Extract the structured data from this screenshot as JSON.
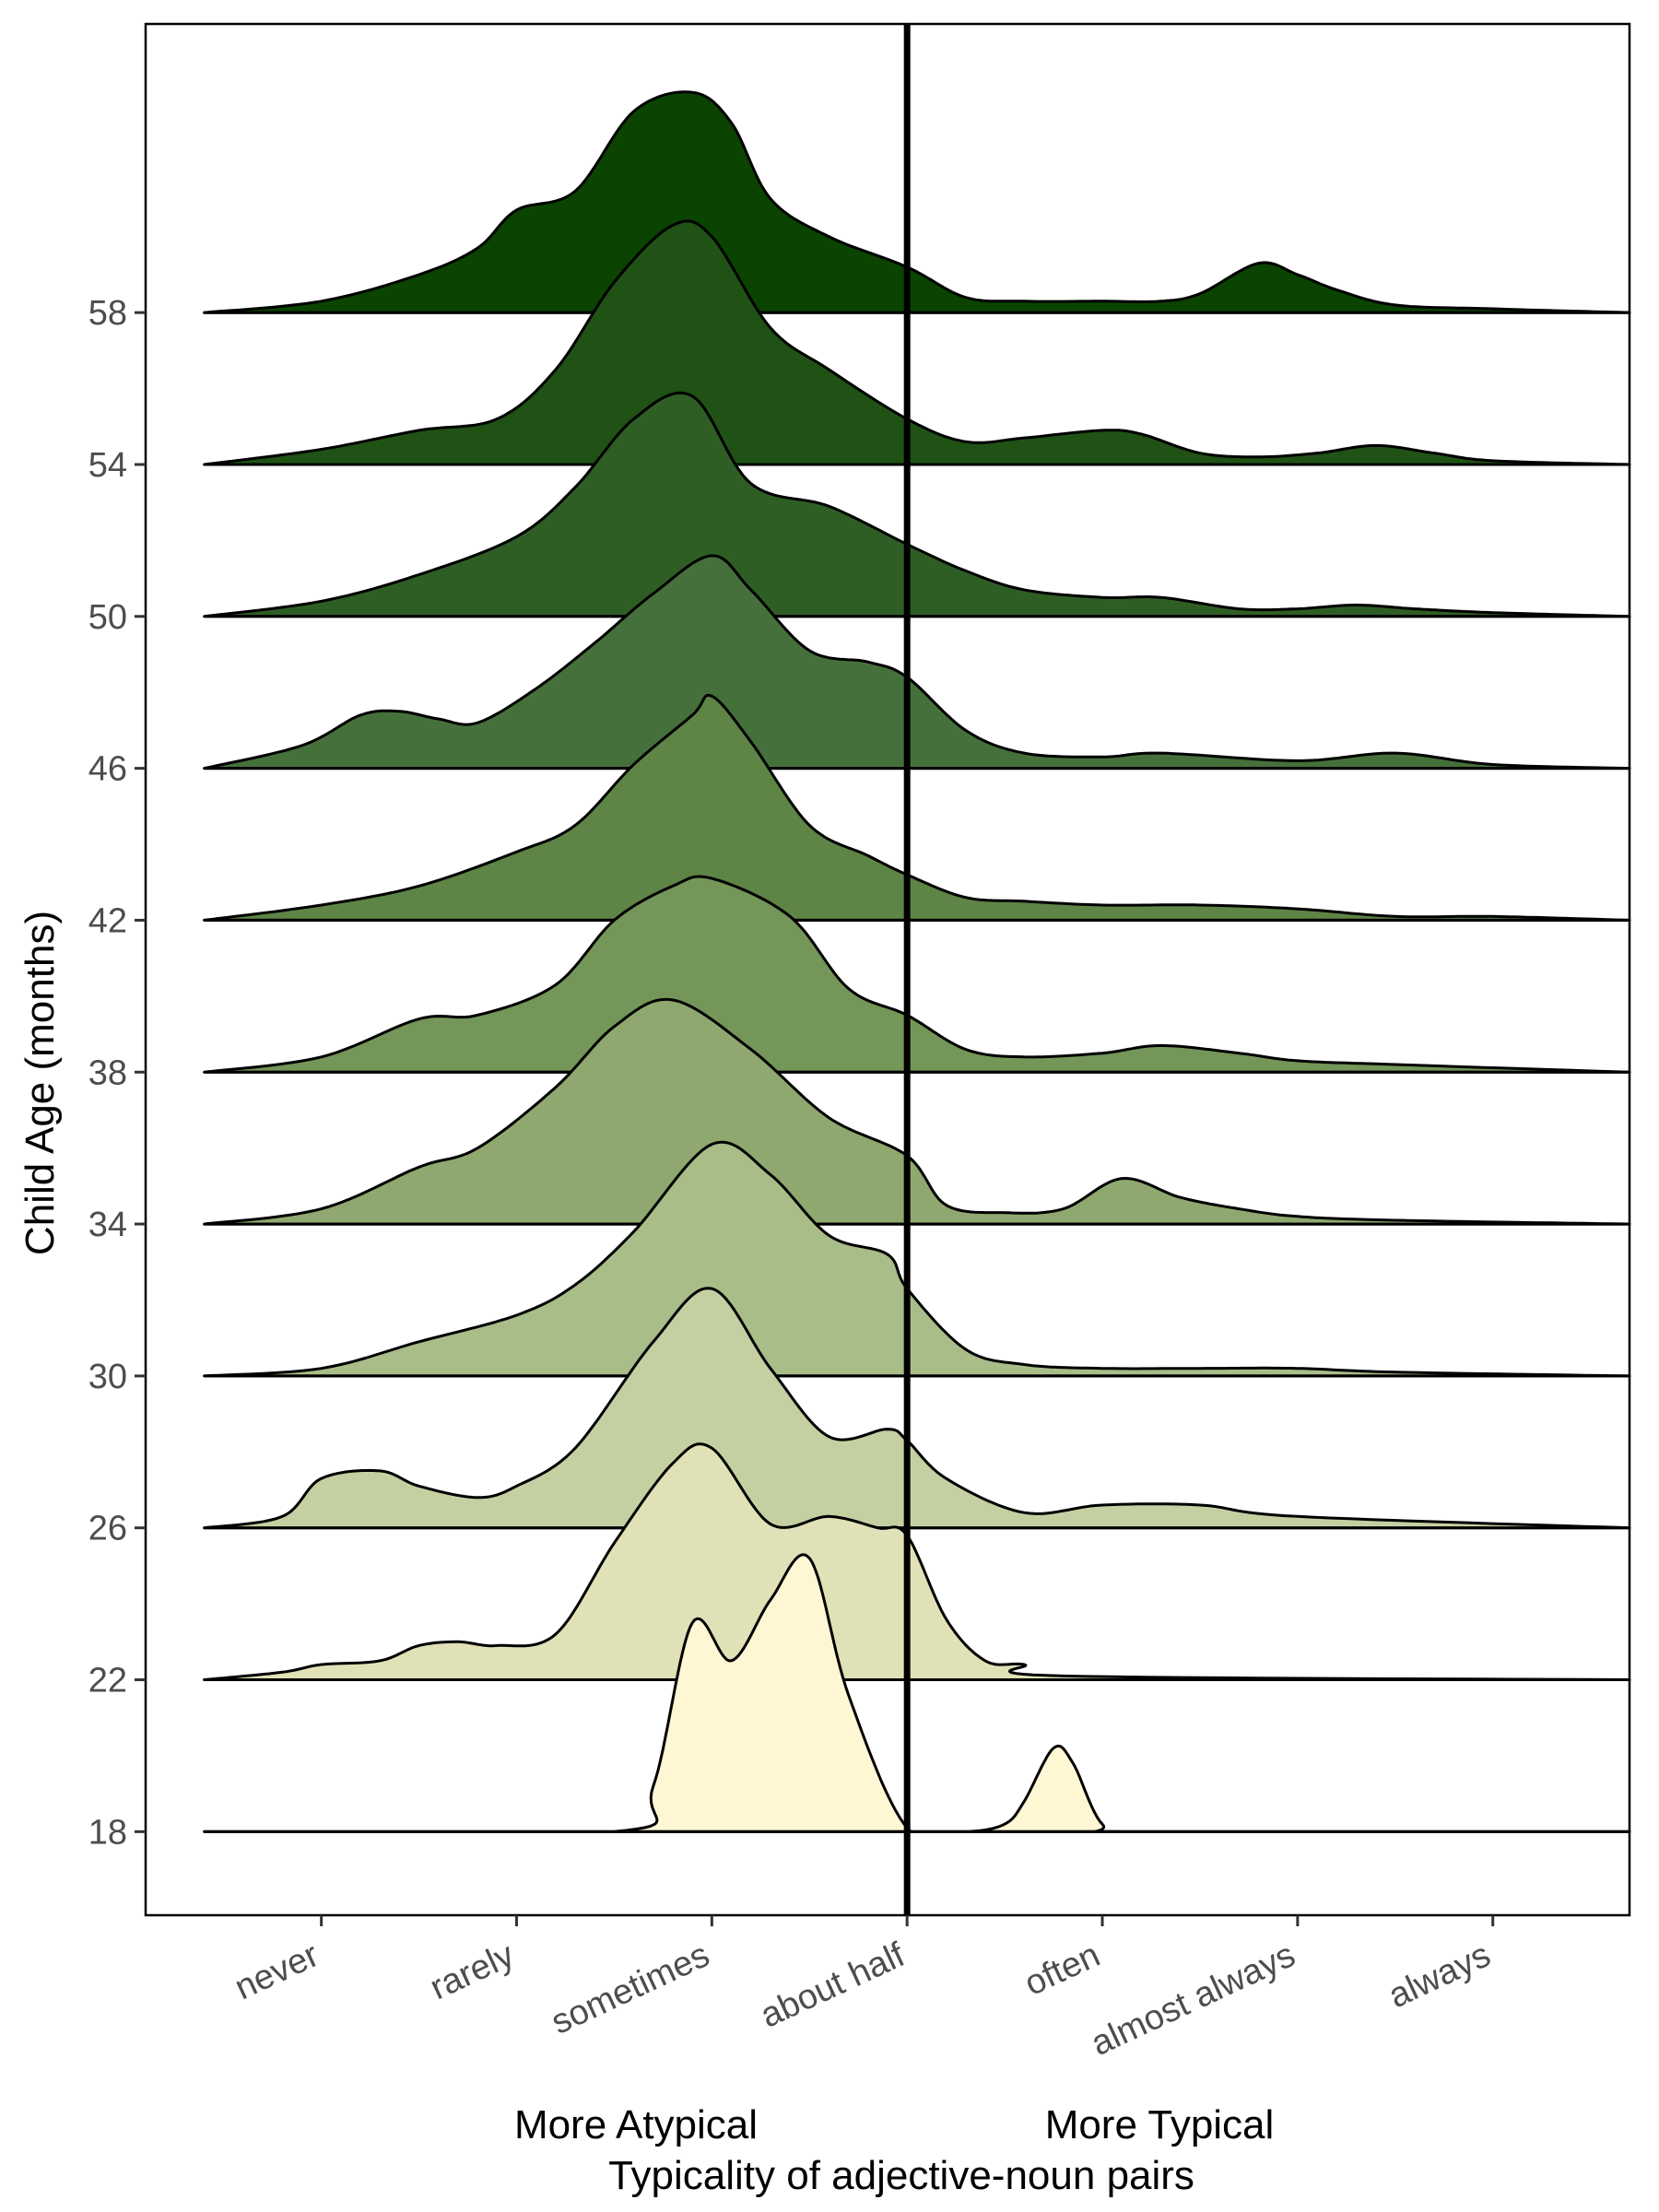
{
  "chart_data": {
    "type": "ridgeline",
    "xlabel": "Typicality of adjective-noun pairs",
    "ylabel": "Child Age (months)",
    "x_annotations": {
      "left": "More Atypical",
      "right": "More Typical"
    },
    "x_categories": [
      "never",
      "rarely",
      "sometimes",
      "about half",
      "often",
      "almost always",
      "always"
    ],
    "x_range": [
      0.1,
      7.7
    ],
    "y_ticks": [
      18,
      22,
      26,
      30,
      34,
      38,
      42,
      46,
      50,
      54,
      58
    ],
    "y_range": [
      15.8,
      65.6
    ],
    "vline_x": 4,
    "grid": false,
    "density_profiles": [
      {
        "age": 18,
        "fill": "#FFF7D4",
        "x": [
          0.4,
          2.5,
          2.7,
          2.9,
          3.1,
          3.3,
          3.5,
          3.7,
          4.0,
          4.3,
          4.5,
          4.6,
          4.75,
          4.85,
          5.0,
          5.2,
          7.7
        ],
        "y": [
          0,
          0,
          1.2,
          5.5,
          4.5,
          6.1,
          7.2,
          3.6,
          0.1,
          0,
          0.2,
          0.8,
          2.2,
          1.8,
          0.2,
          0,
          0
        ]
      },
      {
        "age": 22,
        "fill": "#E1E1B8",
        "x": [
          0.4,
          0.8,
          1.0,
          1.3,
          1.5,
          1.7,
          1.9,
          2.2,
          2.5,
          2.8,
          3.0,
          3.3,
          3.6,
          3.85,
          4.0,
          4.2,
          4.4,
          4.6,
          4.8,
          7.7
        ],
        "y": [
          0,
          0.2,
          0.4,
          0.5,
          0.9,
          1.0,
          0.9,
          1.2,
          3.6,
          5.7,
          6.1,
          4.1,
          4.3,
          4.0,
          3.8,
          1.6,
          0.5,
          0.4,
          0.1,
          0
        ]
      },
      {
        "age": 26,
        "fill": "#C4D0A2",
        "x": [
          0.4,
          0.8,
          1.0,
          1.3,
          1.5,
          1.8,
          2.0,
          2.3,
          2.7,
          3.0,
          3.3,
          3.6,
          3.9,
          4.0,
          4.2,
          4.6,
          5.0,
          5.5,
          6.0,
          7.7
        ],
        "y": [
          0,
          0.3,
          1.3,
          1.5,
          1.1,
          0.8,
          1.1,
          2.1,
          4.9,
          6.3,
          4.2,
          2.4,
          2.6,
          2.3,
          1.3,
          0.4,
          0.6,
          0.6,
          0.3,
          0
        ]
      },
      {
        "age": 30,
        "fill": "#A8BD88",
        "x": [
          0.4,
          1.0,
          1.5,
          2.0,
          2.3,
          2.6,
          3.0,
          3.3,
          3.6,
          3.9,
          4.0,
          4.3,
          4.6,
          5.0,
          5.5,
          6.0,
          6.5,
          7.7
        ],
        "y": [
          0,
          0.2,
          0.9,
          1.6,
          2.4,
          3.8,
          6.1,
          5.3,
          3.7,
          3.2,
          2.3,
          0.7,
          0.3,
          0.2,
          0.2,
          0.2,
          0.1,
          0
        ]
      },
      {
        "age": 34,
        "fill": "#8FA86F",
        "x": [
          0.4,
          1.0,
          1.5,
          1.8,
          2.2,
          2.5,
          2.8,
          3.2,
          3.6,
          4.0,
          4.2,
          4.5,
          4.8,
          5.1,
          5.4,
          5.7,
          6.0,
          6.5,
          7.7
        ],
        "y": [
          0,
          0.4,
          1.5,
          2.0,
          3.6,
          5.2,
          5.9,
          4.6,
          2.8,
          1.8,
          0.5,
          0.3,
          0.4,
          1.2,
          0.7,
          0.4,
          0.2,
          0.1,
          0
        ]
      },
      {
        "age": 38,
        "fill": "#749659",
        "x": [
          0.4,
          1.0,
          1.5,
          1.8,
          2.2,
          2.5,
          2.8,
          3.0,
          3.4,
          3.7,
          4.0,
          4.3,
          4.6,
          5.0,
          5.3,
          5.7,
          6.0,
          6.5,
          7.7
        ],
        "y": [
          0,
          0.4,
          1.4,
          1.5,
          2.3,
          4.0,
          4.9,
          5.1,
          4.1,
          2.2,
          1.5,
          0.6,
          0.4,
          0.5,
          0.7,
          0.5,
          0.3,
          0.2,
          0
        ]
      },
      {
        "age": 42,
        "fill": "#5E8446",
        "x": [
          0.4,
          1.0,
          1.5,
          2.0,
          2.3,
          2.6,
          2.9,
          3.0,
          3.2,
          3.5,
          3.8,
          4.0,
          4.3,
          4.6,
          5.0,
          5.5,
          6.0,
          6.5,
          7.0,
          7.7
        ],
        "y": [
          0,
          0.4,
          0.9,
          1.8,
          2.5,
          4.1,
          5.4,
          5.9,
          4.7,
          2.5,
          1.7,
          1.2,
          0.6,
          0.5,
          0.4,
          0.4,
          0.3,
          0.1,
          0.1,
          0
        ]
      },
      {
        "age": 46,
        "fill": "#46703B",
        "x": [
          0.4,
          0.9,
          1.2,
          1.4,
          1.6,
          1.8,
          2.1,
          2.4,
          2.7,
          3.0,
          3.2,
          3.5,
          3.8,
          4.0,
          4.3,
          4.6,
          5.0,
          5.3,
          6.0,
          6.5,
          7.0,
          7.7
        ],
        "y": [
          0,
          0.6,
          1.4,
          1.5,
          1.3,
          1.2,
          2.1,
          3.3,
          4.6,
          5.6,
          4.7,
          3.1,
          2.8,
          2.4,
          1.0,
          0.4,
          0.3,
          0.4,
          0.2,
          0.4,
          0.1,
          0
        ]
      },
      {
        "age": 50,
        "fill": "#2E5E24",
        "x": [
          0.4,
          1.0,
          1.5,
          2.0,
          2.3,
          2.6,
          2.9,
          3.2,
          3.6,
          4.0,
          4.3,
          4.6,
          5.0,
          5.3,
          5.7,
          6.0,
          6.3,
          6.6,
          7.0,
          7.7
        ],
        "y": [
          0,
          0.4,
          1.1,
          2.1,
          3.4,
          5.2,
          5.8,
          3.5,
          2.9,
          1.9,
          1.2,
          0.7,
          0.5,
          0.5,
          0.2,
          0.2,
          0.3,
          0.2,
          0.1,
          0
        ]
      },
      {
        "age": 54,
        "fill": "#1F5214",
        "x": [
          0.4,
          1.0,
          1.5,
          1.9,
          2.2,
          2.5,
          2.8,
          3.0,
          3.3,
          3.6,
          4.0,
          4.3,
          4.6,
          5.0,
          5.2,
          5.5,
          5.8,
          6.1,
          6.4,
          6.7,
          7.0,
          7.7
        ],
        "y": [
          0,
          0.4,
          0.9,
          1.2,
          2.5,
          4.8,
          6.3,
          6.0,
          3.6,
          2.5,
          1.2,
          0.6,
          0.7,
          0.9,
          0.8,
          0.3,
          0.2,
          0.3,
          0.5,
          0.3,
          0.1,
          0
        ]
      },
      {
        "age": 58,
        "fill": "#0A4400",
        "x": [
          0.4,
          1.0,
          1.5,
          1.8,
          2.0,
          2.3,
          2.6,
          2.9,
          3.1,
          3.3,
          3.6,
          4.0,
          4.3,
          4.6,
          5.0,
          5.3,
          5.5,
          5.8,
          6.0,
          6.2,
          6.5,
          7.0,
          7.7
        ],
        "y": [
          0,
          0.3,
          1.0,
          1.7,
          2.7,
          3.2,
          5.3,
          5.8,
          5.0,
          3.0,
          2.0,
          1.2,
          0.4,
          0.3,
          0.3,
          0.3,
          0.5,
          1.3,
          1.0,
          0.6,
          0.2,
          0.1,
          0
        ]
      }
    ]
  }
}
